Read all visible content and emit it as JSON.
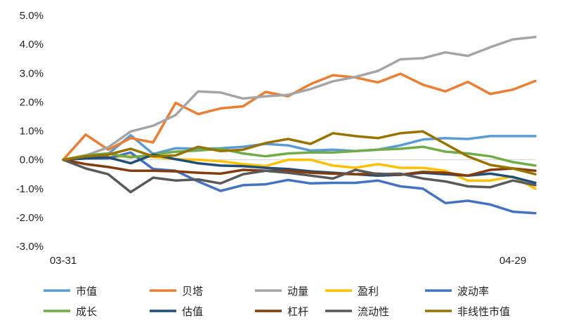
{
  "chart_data": {
    "type": "line",
    "ylim": [
      -3,
      5
    ],
    "y_ticks": [
      "5.0%",
      "4.0%",
      "3.0%",
      "2.0%",
      "1.0%",
      "0.0%",
      "-1.0%",
      "-2.0%",
      "-3.0%"
    ],
    "x_ticks": [
      "03-31",
      "04-29"
    ],
    "grid": false,
    "legend_position": "bottom",
    "legend_columns": 5,
    "point_count": 22,
    "series": [
      {
        "name": "市值",
        "color": "#5b9bd5",
        "values": [
          0,
          0.12,
          0.2,
          0.85,
          0.2,
          0.4,
          0.38,
          0.4,
          0.45,
          0.55,
          0.5,
          0.32,
          0.35,
          0.3,
          0.35,
          0.5,
          0.7,
          0.75,
          0.72,
          0.82,
          0.82,
          0.82
        ]
      },
      {
        "name": "贝塔",
        "color": "#ed7d31",
        "values": [
          0,
          0.87,
          0.35,
          0.75,
          0.6,
          1.97,
          1.58,
          1.78,
          1.85,
          2.35,
          2.2,
          2.62,
          2.93,
          2.85,
          2.68,
          2.98,
          2.6,
          2.37,
          2.7,
          2.28,
          2.43,
          2.73
        ]
      },
      {
        "name": "动量",
        "color": "#a5a5a5",
        "values": [
          0,
          0.15,
          0.43,
          0.98,
          1.18,
          1.55,
          2.37,
          2.33,
          2.12,
          2.2,
          2.25,
          2.45,
          2.72,
          2.87,
          3.08,
          3.48,
          3.52,
          3.72,
          3.6,
          3.9,
          4.17,
          4.25
        ]
      },
      {
        "name": "盈利",
        "color": "#ffc000",
        "values": [
          0,
          0.15,
          0.1,
          0.12,
          0.1,
          0.02,
          0.0,
          -0.05,
          -0.15,
          -0.22,
          0.0,
          0.0,
          -0.2,
          -0.28,
          -0.15,
          -0.28,
          -0.28,
          -0.38,
          -0.72,
          -0.72,
          -0.58,
          -1.0
        ]
      },
      {
        "name": "波动率",
        "color": "#4472c4",
        "values": [
          0,
          0.05,
          0.05,
          0.25,
          -0.32,
          -0.38,
          -0.75,
          -1.08,
          -0.88,
          -0.85,
          -0.7,
          -0.82,
          -0.8,
          -0.8,
          -0.72,
          -0.92,
          -1.0,
          -1.5,
          -1.42,
          -1.55,
          -1.8,
          -1.85
        ]
      },
      {
        "name": "成长",
        "color": "#70ad47",
        "values": [
          0,
          0.15,
          0.22,
          0.08,
          0.18,
          0.28,
          0.32,
          0.38,
          0.22,
          0.12,
          0.22,
          0.25,
          0.25,
          0.3,
          0.35,
          0.38,
          0.45,
          0.28,
          0.22,
          0.12,
          -0.08,
          -0.2
        ]
      },
      {
        "name": "估值",
        "color": "#1f4e79",
        "values": [
          0,
          0.05,
          0.08,
          -0.12,
          0.18,
          0.02,
          -0.12,
          -0.2,
          -0.22,
          -0.28,
          -0.32,
          -0.4,
          -0.45,
          -0.5,
          -0.55,
          -0.52,
          -0.45,
          -0.5,
          -0.55,
          -0.48,
          -0.6,
          -0.8
        ]
      },
      {
        "name": "杠杆",
        "color": "#843c0c",
        "values": [
          0,
          -0.15,
          -0.25,
          -0.38,
          -0.38,
          -0.4,
          -0.45,
          -0.48,
          -0.35,
          -0.38,
          -0.38,
          -0.45,
          -0.48,
          -0.5,
          -0.48,
          -0.52,
          -0.42,
          -0.45,
          -0.55,
          -0.35,
          -0.3,
          -0.38
        ]
      },
      {
        "name": "流动性",
        "color": "#595959",
        "values": [
          0,
          -0.3,
          -0.5,
          -1.12,
          -0.62,
          -0.72,
          -0.68,
          -0.82,
          -0.5,
          -0.38,
          -0.45,
          -0.55,
          -0.65,
          -0.35,
          -0.5,
          -0.48,
          -0.65,
          -0.75,
          -0.92,
          -0.95,
          -0.72,
          -0.88
        ]
      },
      {
        "name": "非线性市值",
        "color": "#997300",
        "values": [
          0,
          0.12,
          0.18,
          0.38,
          0.12,
          0.15,
          0.45,
          0.3,
          0.35,
          0.58,
          0.72,
          0.55,
          0.92,
          0.82,
          0.75,
          0.92,
          0.98,
          0.55,
          0.12,
          -0.18,
          -0.3,
          -0.5
        ]
      }
    ]
  }
}
